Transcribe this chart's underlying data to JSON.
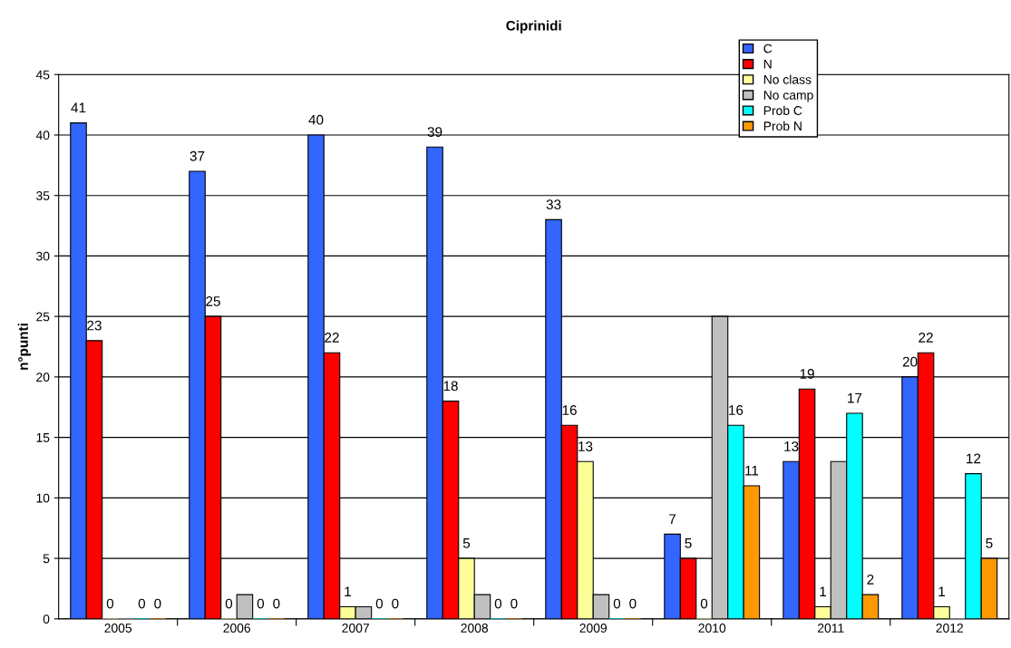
{
  "chart_data": {
    "type": "bar",
    "title": "Ciprinidi",
    "ylabel": "n°punti",
    "categories": [
      "2005",
      "2006",
      "2007",
      "2008",
      "2009",
      "2010",
      "2011",
      "2012"
    ],
    "series": [
      {
        "name": "C",
        "color": "#3366ff",
        "values": [
          41,
          37,
          40,
          39,
          33,
          7,
          13,
          20
        ],
        "value_labels": [
          "41",
          "37",
          "40",
          "39",
          "33",
          "7",
          "13",
          "20"
        ]
      },
      {
        "name": "N",
        "color": "#ff0000",
        "values": [
          23,
          25,
          22,
          18,
          16,
          5,
          19,
          22
        ],
        "value_labels": [
          "23",
          "25",
          "22",
          "18",
          "16",
          "5",
          "19",
          "22"
        ]
      },
      {
        "name": "No class",
        "color": "#ffff99",
        "values": [
          0,
          0,
          1,
          5,
          13,
          0,
          1,
          1
        ],
        "value_labels": [
          "0",
          "0",
          "1",
          "5",
          "13",
          "0",
          "1",
          "1"
        ]
      },
      {
        "name": "No camp",
        "color": "#c0c0c0",
        "values": [
          0,
          2,
          1,
          2,
          2,
          25,
          13,
          0
        ]
      },
      {
        "name": "Prob C",
        "color": "#00ffff",
        "values": [
          0,
          0,
          0,
          0,
          0,
          16,
          17,
          12
        ],
        "value_labels": [
          "0",
          "0",
          "0",
          "0",
          "0",
          "16",
          "17",
          "12"
        ]
      },
      {
        "name": "Prob N",
        "color": "#ff9900",
        "values": [
          0,
          0,
          0,
          0,
          0,
          11,
          2,
          5
        ],
        "value_labels": [
          "0",
          "0",
          "0",
          "0",
          "0",
          "11",
          "2",
          "5"
        ]
      }
    ],
    "ylim": [
      0,
      45
    ],
    "yticks": [
      0,
      5,
      10,
      15,
      20,
      25,
      30,
      35,
      40,
      45
    ],
    "grid": "y",
    "legend": "top right"
  }
}
